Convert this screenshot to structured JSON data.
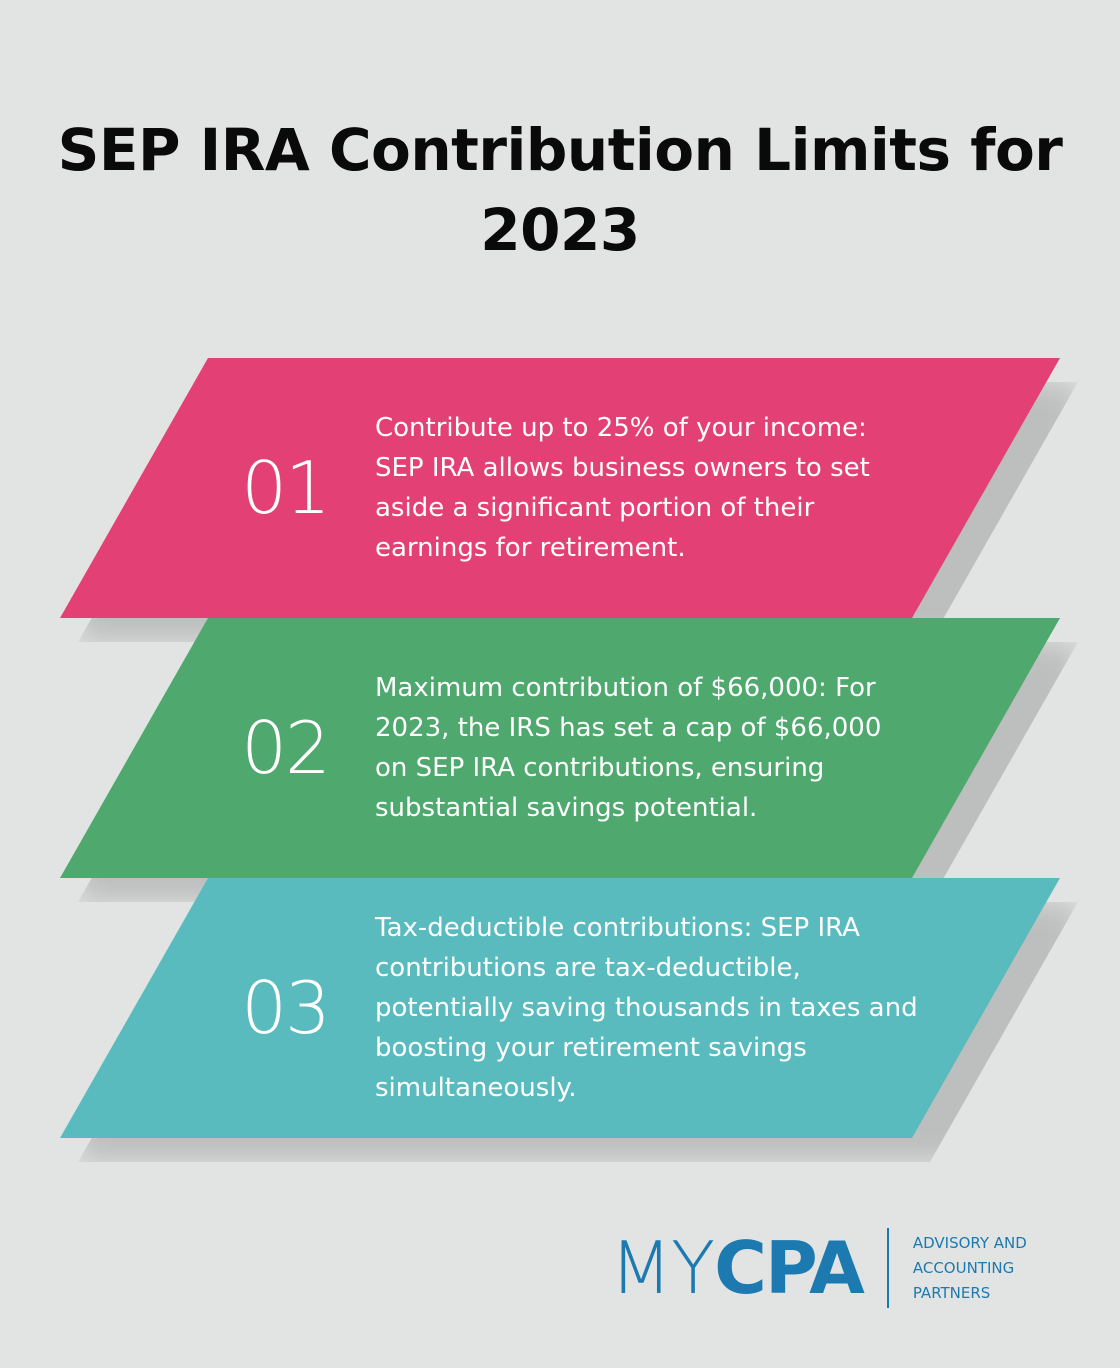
{
  "title": "SEP IRA Contribution Limits for 2023",
  "items": [
    {
      "number": "01",
      "text": "Contribute up to 25% of your income: SEP IRA allows business owners to set aside a significant portion of their earnings for retirement.",
      "color": "#e34175"
    },
    {
      "number": "02",
      "text": "Maximum contribution of $66,000: For 2023, the IRS has set a cap of $66,000 on SEP IRA contributions, ensuring substantial savings potential.",
      "color": "#4fa86d"
    },
    {
      "number": "03",
      "text": "Tax-deductible contributions: SEP IRA contributions are tax-deductible, potentially saving thousands in taxes and boosting your retirement savings simultaneously.",
      "color": "#5abbbe"
    }
  ],
  "logo": {
    "my": "MY",
    "cpa": "CPA",
    "tagline": [
      "ADVISORY AND",
      "ACCOUNTING",
      "PARTNERS"
    ],
    "color": "#1c7ab0"
  }
}
